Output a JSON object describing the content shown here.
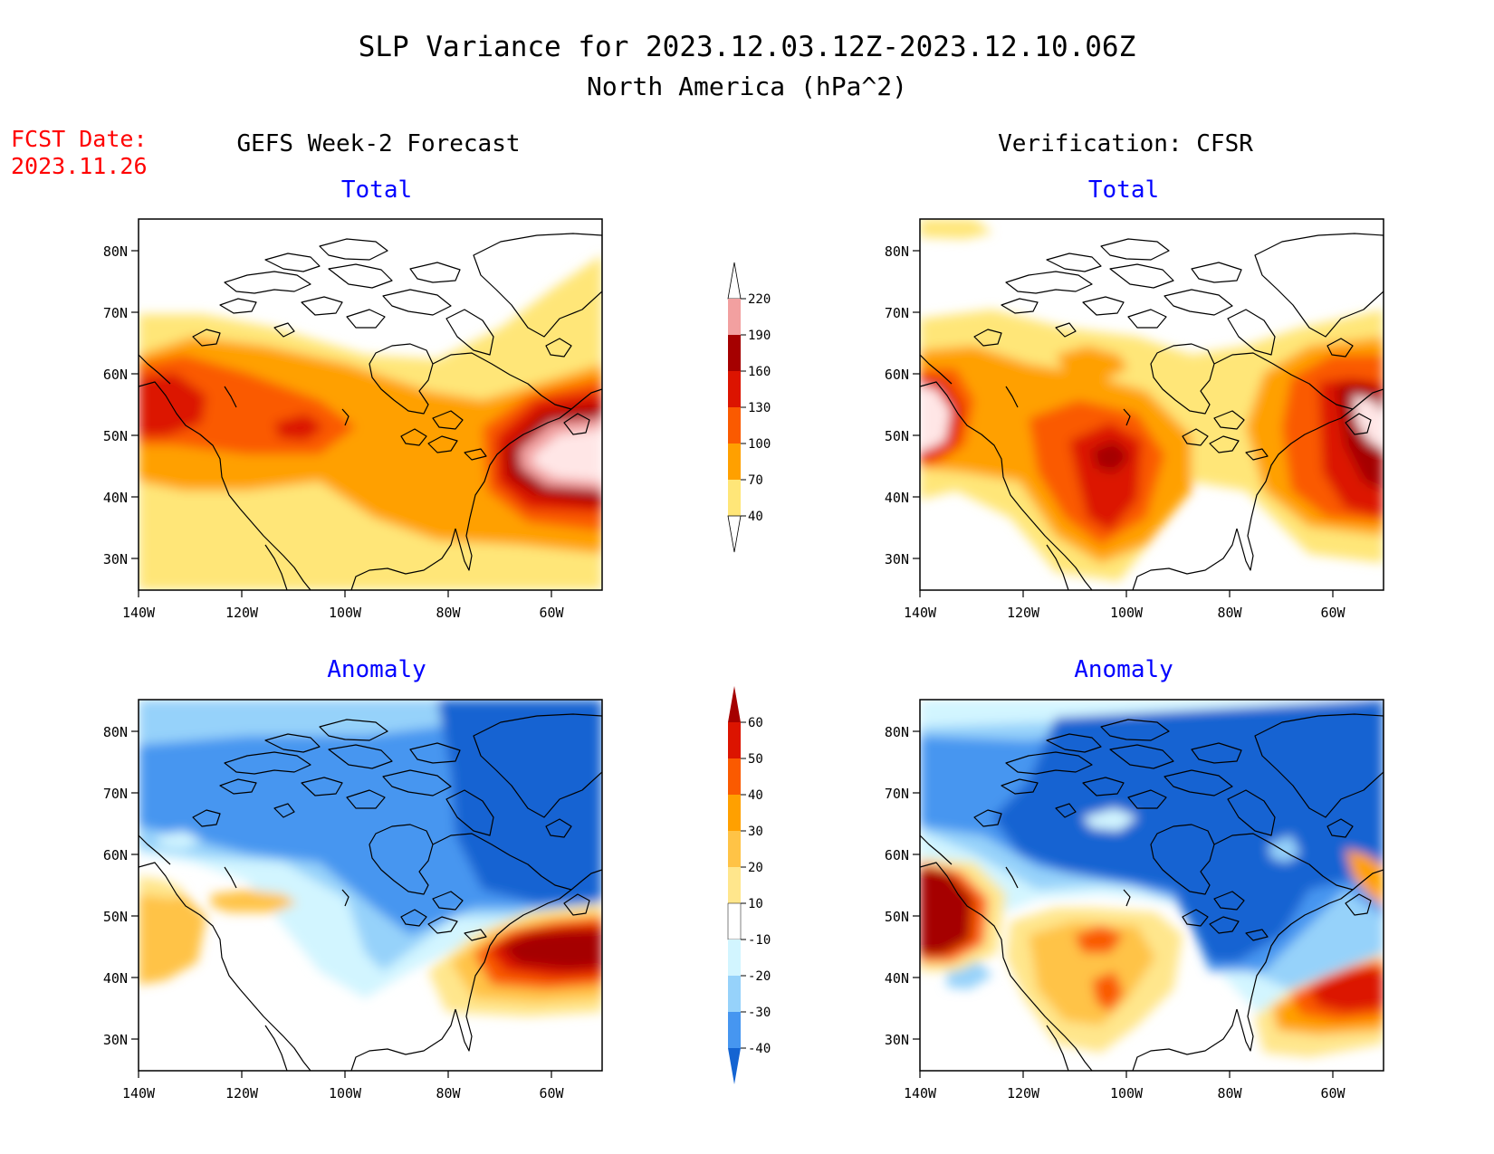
{
  "title": "SLP Variance for 2023.12.03.12Z-2023.12.10.06Z",
  "subtitle": "North America (hPa^2)",
  "fcst_date": {
    "label": "FCST Date:",
    "value": "2023.11.26"
  },
  "columns": {
    "left": "GEFS Week-2 Forecast",
    "right": "Verification: CFSR"
  },
  "panel_titles": {
    "total": "Total",
    "anomaly": "Anomaly"
  },
  "colors": {
    "title_text": "#000000",
    "fcst_text": "#ff0000",
    "panel_title_text": "#0000ff",
    "coastline": "#000000"
  },
  "axes": {
    "lon_labels": [
      "140W",
      "120W",
      "100W",
      "80W",
      "60W"
    ],
    "lat_labels": [
      "80N",
      "70N",
      "60N",
      "50N",
      "40N",
      "30N"
    ]
  },
  "legends": {
    "total": {
      "values": [
        "220",
        "190",
        "160",
        "130",
        "100",
        "70",
        "40"
      ],
      "colors": [
        "#ffe6e6",
        "#f2a0a0",
        "#a50000",
        "#dc1400",
        "#fa5a00",
        "#ffa000",
        "#ffe678"
      ]
    },
    "anomaly": {
      "values": [
        "60",
        "50",
        "40",
        "30",
        "20",
        "10",
        "-10",
        "-20",
        "-30",
        "-40"
      ],
      "colors": [
        "#a50000",
        "#dc1400",
        "#fa5a00",
        "#ffa000",
        "#ffc346",
        "#ffe68c",
        "#ffffff",
        "#d2f5ff",
        "#96d2fa",
        "#4696f0",
        "#1464d2"
      ]
    }
  }
}
